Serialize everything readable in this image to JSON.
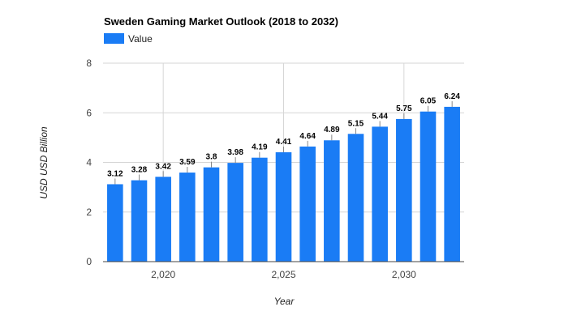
{
  "chart_data": {
    "type": "bar",
    "title": "Sweden Gaming Market Outlook (2018 to 2032)",
    "xlabel": "Year",
    "ylabel": "USD USD Billion",
    "series": [
      {
        "name": "Value",
        "color": "#1a7cf5",
        "x": [
          2018,
          2019,
          2020,
          2021,
          2022,
          2023,
          2024,
          2025,
          2026,
          2027,
          2028,
          2029,
          2030,
          2031,
          2032
        ],
        "values": [
          3.12,
          3.28,
          3.42,
          3.59,
          3.8,
          3.98,
          4.19,
          4.41,
          4.64,
          4.89,
          5.15,
          5.44,
          5.75,
          6.05,
          6.24
        ],
        "labels": [
          "3.12",
          "3.28",
          "3.42",
          "3.59",
          "3.8",
          "3.98",
          "4.19",
          "4.41",
          "4.64",
          "4.89",
          "5.15",
          "5.44",
          "5.75",
          "6.05",
          "6.24"
        ]
      }
    ],
    "ylim": [
      0,
      8
    ],
    "y_ticks": [
      0,
      2,
      4,
      6,
      8
    ],
    "y_tick_labels": [
      "0",
      "2",
      "4",
      "6",
      "8"
    ],
    "x_ticks": [
      2020,
      2025,
      2030
    ],
    "x_tick_labels": [
      "2,020",
      "2,025",
      "2,030"
    ],
    "grid": true,
    "legend_position": "top-left"
  }
}
